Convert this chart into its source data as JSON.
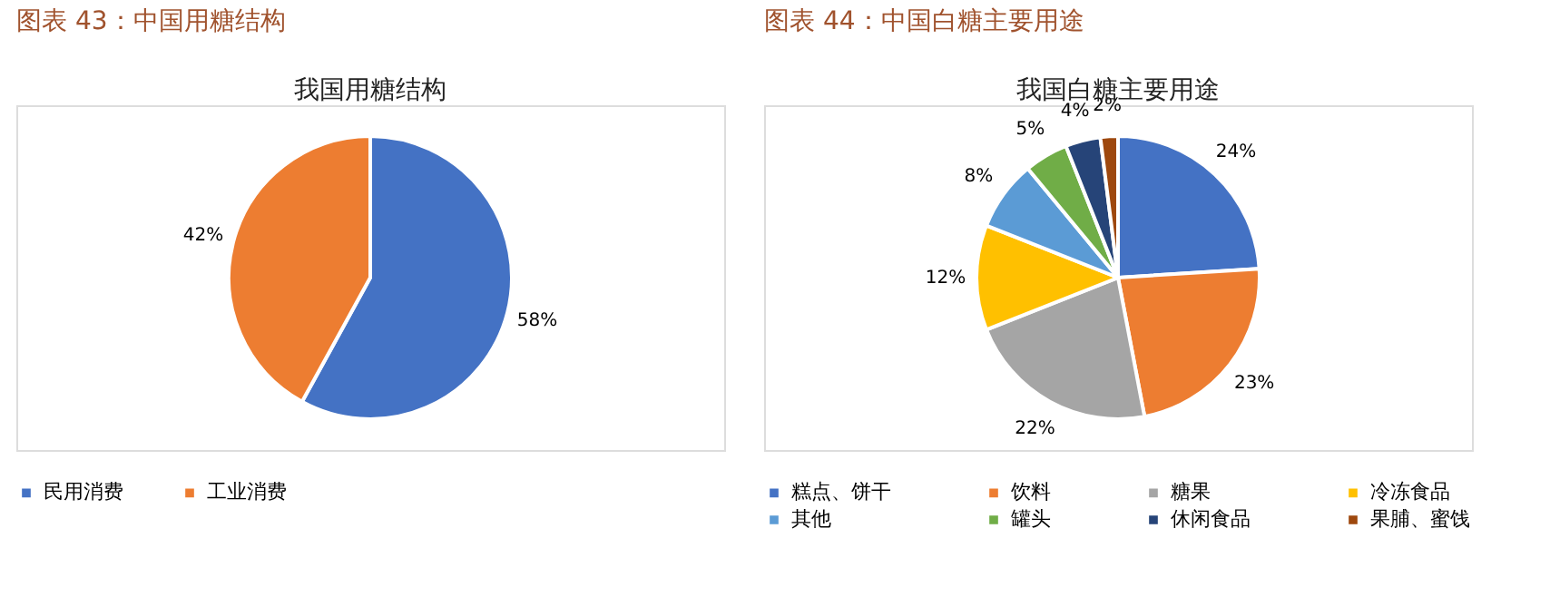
{
  "chart_data": [
    {
      "type": "pie",
      "title": "图表 43：中国用糖结构",
      "subtitle": "我国用糖结构",
      "categories": [
        "民用消费",
        "工业消费"
      ],
      "values": [
        58,
        42
      ],
      "colors": [
        "#4472c4",
        "#ed7d31"
      ],
      "value_labels": [
        "58%",
        "42%"
      ],
      "legend": "bottom"
    },
    {
      "type": "pie",
      "title": "图表 44：中国白糖主要用途",
      "subtitle": "我国白糖主要用途",
      "categories": [
        "糕点、饼干",
        "饮料",
        "糖果",
        "冷冻食品",
        "其他",
        "罐头",
        "休闲食品",
        "果脯、蜜饯"
      ],
      "values": [
        24,
        23,
        22,
        12,
        8,
        5,
        4,
        2
      ],
      "colors": [
        "#4472c4",
        "#ed7d31",
        "#a5a5a5",
        "#ffc000",
        "#5b9bd5",
        "#70ad47",
        "#264478",
        "#9e480e"
      ],
      "value_labels": [
        "24%",
        "23%",
        "22%",
        "12%",
        "8%",
        "5%",
        "4%",
        "2%"
      ],
      "legend": "bottom"
    }
  ]
}
